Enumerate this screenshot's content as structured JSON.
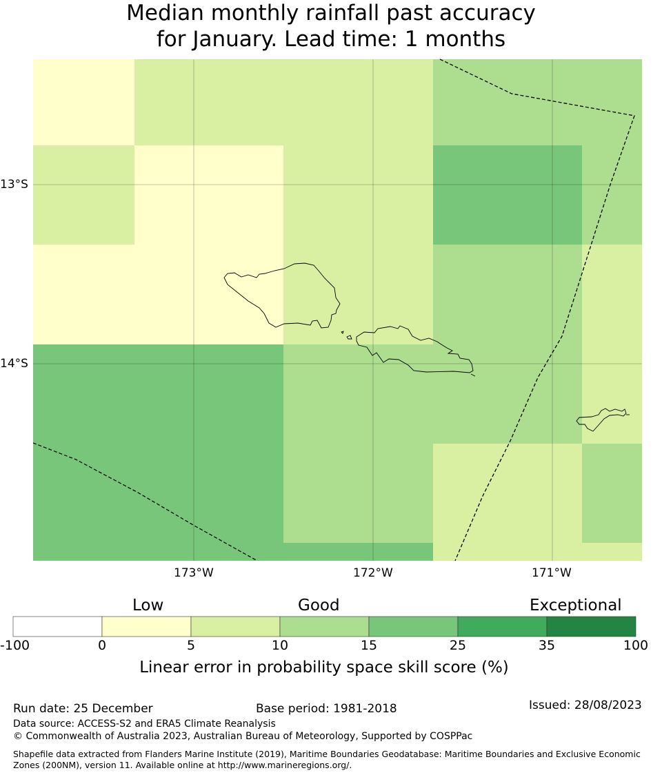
{
  "title": {
    "line1": "Median monthly rainfall past accuracy",
    "line2": "for January. Lead time: 1 months"
  },
  "map": {
    "lat_labels": [
      "13°S",
      "14°S"
    ],
    "lon_labels": [
      "173°W",
      "172°W",
      "171°W"
    ]
  },
  "legend": {
    "categories": [
      "Low",
      "Good",
      "Exceptional"
    ],
    "ticks": [
      "-100",
      "0",
      "5",
      "10",
      "15",
      "25",
      "35",
      "100"
    ],
    "colors": [
      "#ffffff",
      "#ffffcc",
      "#d9f0a3",
      "#addd8e",
      "#78c679",
      "#41ab5d",
      "#238443"
    ],
    "label": "Linear error in probability space skill score (%)"
  },
  "footer": {
    "run_date": "Run date: 25 December",
    "base_period": "Base period: 1981-2018",
    "issued": "Issued: 28/08/2023",
    "data_source": "Data source: ACCESS-S2 and ERA5 Climate Reanalysis",
    "copyright": "© Commonwealth of Australia 2023, Australian Bureau of Meteorology, Supported by COSPPac",
    "shapefile": "Shapefile data extracted from Flanders Marine Institute (2019), Maritime Boundaries Geodatabase: Maritime Boundaries and Exclusive Economic Zones (200NM), version 11. Available online at http://www.marineregions.org/."
  }
}
